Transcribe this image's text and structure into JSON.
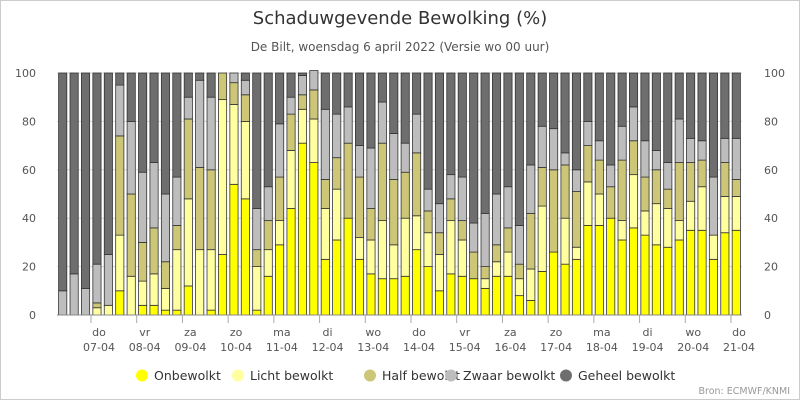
{
  "chart_data": {
    "type": "bar",
    "stacked": true,
    "title": "Schaduwgevende Bewolking (%)",
    "subtitle": "De Bilt, woensdag 6 april 2022 (Versie wo 00 uur)",
    "credit": "Bron: ECMWF/KNMI",
    "ylim": [
      0,
      100
    ],
    "yticks": [
      0,
      20,
      40,
      60,
      80,
      100
    ],
    "grid": true,
    "legend_position": "bottom",
    "x_labels": [
      {
        "day": "do",
        "date": "07-04"
      },
      {
        "day": "vr",
        "date": "08-04"
      },
      {
        "day": "za",
        "date": "09-04"
      },
      {
        "day": "zo",
        "date": "10-04"
      },
      {
        "day": "ma",
        "date": "11-04"
      },
      {
        "day": "di",
        "date": "12-04"
      },
      {
        "day": "wo",
        "date": "13-04"
      },
      {
        "day": "do",
        "date": "14-04"
      },
      {
        "day": "vr",
        "date": "15-04"
      },
      {
        "day": "za",
        "date": "16-04"
      },
      {
        "day": "zo",
        "date": "17-04"
      },
      {
        "day": "ma",
        "date": "18-04"
      },
      {
        "day": "di",
        "date": "19-04"
      },
      {
        "day": "wo",
        "date": "20-04"
      },
      {
        "day": "do",
        "date": "21-04"
      }
    ],
    "series": [
      {
        "name": "Onbewolkt",
        "color": "#ffff00",
        "values": [
          0,
          0,
          0,
          0,
          0,
          10,
          0,
          4,
          4,
          2,
          2,
          12,
          0,
          2,
          25,
          54,
          48,
          2,
          16,
          29,
          44,
          71,
          63,
          23,
          31,
          40,
          23,
          17,
          15,
          15,
          16,
          27,
          20,
          10,
          17,
          16,
          15,
          11,
          16,
          16,
          8,
          6,
          18,
          26,
          21,
          23,
          37,
          37,
          40,
          31,
          36,
          33,
          29,
          28,
          31,
          35,
          35,
          23,
          34,
          35
        ]
      },
      {
        "name": "Licht bewolkt",
        "color": "#ffffa0",
        "values": [
          0,
          0,
          0,
          3,
          4,
          23,
          16,
          10,
          13,
          9,
          25,
          36,
          27,
          25,
          64,
          33,
          32,
          18,
          11,
          10,
          24,
          14,
          18,
          21,
          21,
          0,
          9,
          14,
          24,
          14,
          24,
          14,
          14,
          15,
          22,
          15,
          0,
          4,
          6,
          10,
          7,
          13,
          27,
          0,
          19,
          5,
          18,
          13,
          0,
          8,
          22,
          10,
          17,
          16,
          8,
          12,
          18,
          10,
          15,
          14
        ]
      },
      {
        "name": "Half bewolkt",
        "color": "#cdc677",
        "values": [
          0,
          0,
          0,
          2,
          0,
          41,
          34,
          16,
          19,
          11,
          10,
          33,
          34,
          33,
          11,
          9,
          11,
          7,
          12,
          18,
          15,
          6,
          12,
          12,
          13,
          31,
          25,
          13,
          32,
          27,
          19,
          26,
          9,
          9,
          9,
          8,
          11,
          5,
          7,
          10,
          6,
          23,
          16,
          34,
          22,
          23,
          15,
          14,
          13,
          25,
          14,
          14,
          14,
          8,
          24,
          16,
          11,
          0,
          14,
          7
        ]
      },
      {
        "name": "Zwaar bewolkt",
        "color": "#bdbdbd",
        "values": [
          10,
          17,
          11,
          16,
          21,
          21,
          30,
          29,
          27,
          28,
          20,
          9,
          36,
          30,
          0,
          4,
          6,
          17,
          14,
          22,
          7,
          8,
          8,
          29,
          18,
          15,
          13,
          25,
          17,
          19,
          12,
          16,
          9,
          12,
          10,
          18,
          12,
          22,
          21,
          17,
          16,
          20,
          17,
          17,
          5,
          9,
          10,
          8,
          9,
          14,
          14,
          15,
          8,
          11,
          18,
          10,
          8,
          24,
          10,
          17
        ]
      },
      {
        "name": "Geheel bewolkt",
        "color": "#6e6e6e",
        "values": [
          90,
          83,
          89,
          79,
          75,
          5,
          20,
          41,
          37,
          50,
          43,
          10,
          3,
          10,
          0,
          0,
          3,
          56,
          47,
          21,
          10,
          1,
          0,
          15,
          17,
          14,
          30,
          31,
          12,
          25,
          29,
          17,
          48,
          54,
          42,
          43,
          62,
          58,
          50,
          47,
          63,
          38,
          22,
          23,
          33,
          40,
          20,
          28,
          38,
          22,
          14,
          28,
          32,
          37,
          19,
          27,
          28,
          43,
          27,
          27
        ]
      }
    ]
  }
}
